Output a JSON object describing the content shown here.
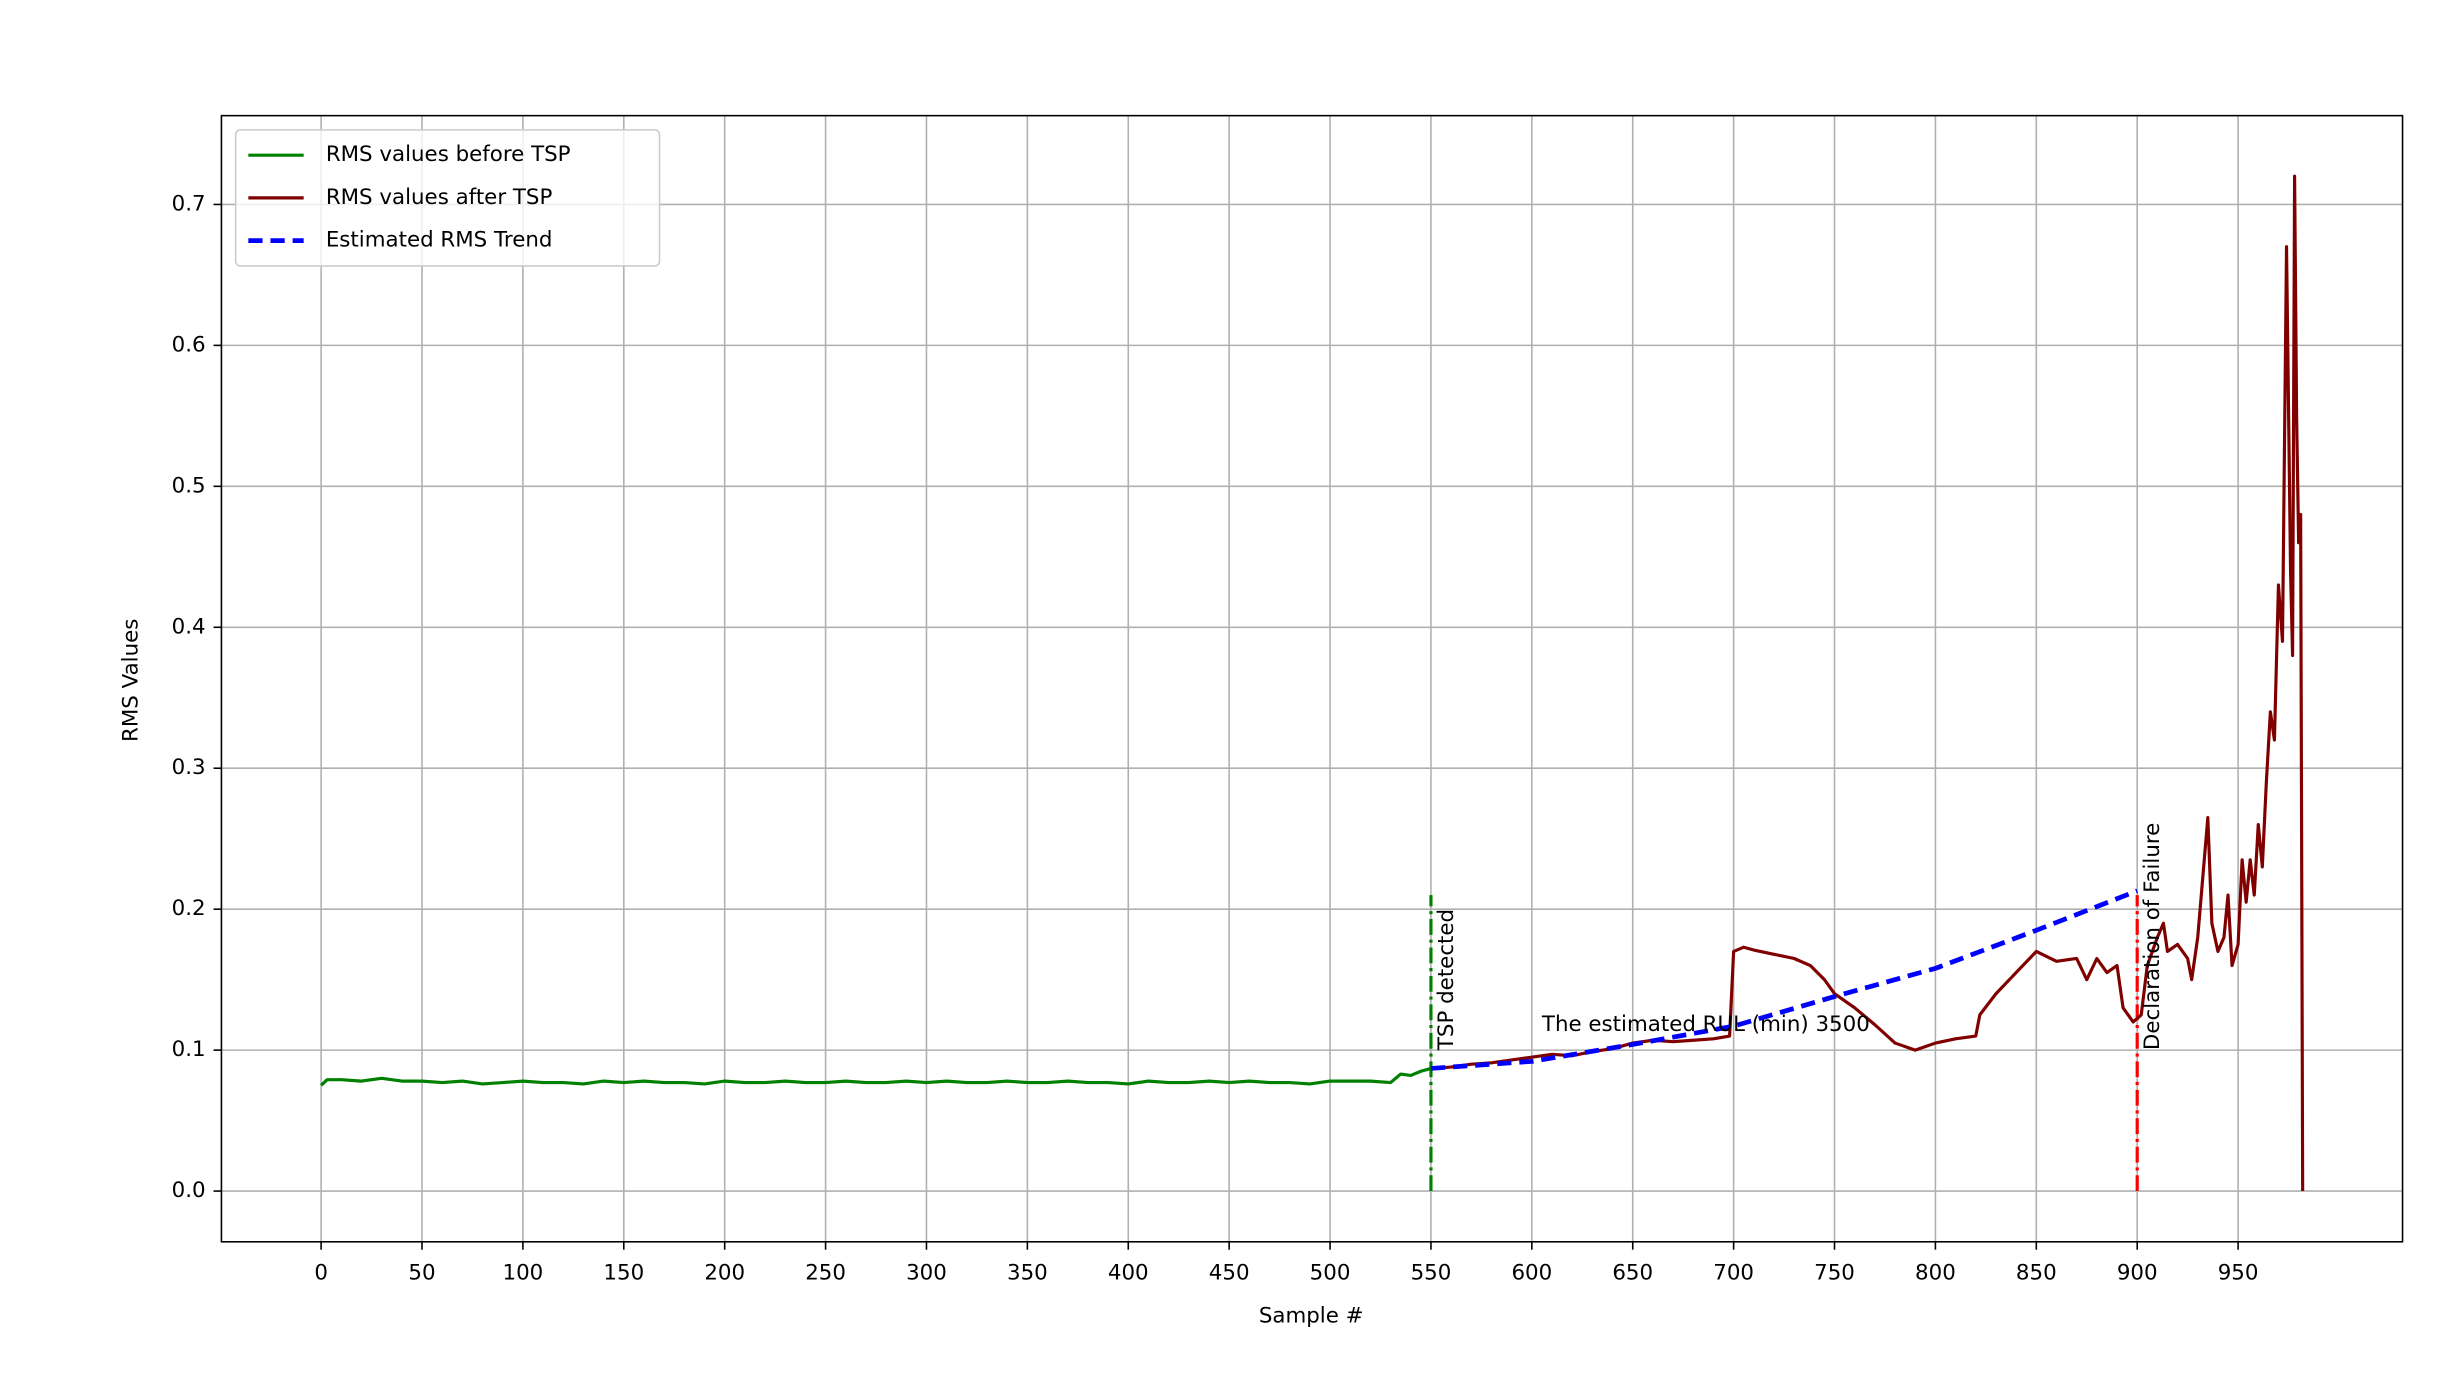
{
  "chart_data": {
    "type": "line",
    "xlabel": "Sample #",
    "ylabel": "RMS Values",
    "xlim": [
      -49.4,
      1031.5
    ],
    "ylim": [
      -0.036,
      0.763
    ],
    "xticks": [
      0,
      50,
      100,
      150,
      200,
      250,
      300,
      350,
      400,
      450,
      500,
      550,
      600,
      650,
      700,
      750,
      800,
      850,
      900,
      950
    ],
    "yticks": [
      {
        "value": 0,
        "label": "0.0"
      },
      0.1,
      0.2,
      0.3,
      0.4,
      0.5,
      0.6,
      0.7
    ],
    "grid": true,
    "legend": "upper left",
    "series": [
      {
        "name": "RMS values before TSP",
        "color": "#008000",
        "linestyle": "solid",
        "x": [
          0,
          3,
          10,
          20,
          30,
          40,
          50,
          60,
          70,
          80,
          90,
          100,
          110,
          120,
          130,
          140,
          150,
          160,
          170,
          180,
          190,
          200,
          210,
          220,
          230,
          240,
          250,
          260,
          270,
          280,
          290,
          300,
          310,
          320,
          330,
          340,
          350,
          360,
          370,
          380,
          390,
          400,
          410,
          420,
          430,
          440,
          450,
          460,
          470,
          480,
          490,
          500,
          510,
          520,
          530,
          535,
          540,
          545,
          550
        ],
        "values": [
          0.075,
          0.079,
          0.079,
          0.078,
          0.08,
          0.078,
          0.078,
          0.077,
          0.078,
          0.076,
          0.077,
          0.078,
          0.077,
          0.077,
          0.076,
          0.078,
          0.077,
          0.078,
          0.077,
          0.077,
          0.076,
          0.078,
          0.077,
          0.077,
          0.078,
          0.077,
          0.077,
          0.078,
          0.077,
          0.077,
          0.078,
          0.077,
          0.078,
          0.077,
          0.077,
          0.078,
          0.077,
          0.077,
          0.078,
          0.077,
          0.077,
          0.076,
          0.078,
          0.077,
          0.077,
          0.078,
          0.077,
          0.078,
          0.077,
          0.077,
          0.076,
          0.078,
          0.078,
          0.078,
          0.077,
          0.083,
          0.082,
          0.085,
          0.087
        ]
      },
      {
        "name": "RMS values after TSP",
        "color": "#800000",
        "linestyle": "solid",
        "x": [
          550,
          560,
          570,
          580,
          590,
          600,
          610,
          620,
          630,
          640,
          650,
          660,
          670,
          680,
          690,
          698,
          700,
          705,
          710,
          720,
          730,
          738,
          745,
          750,
          760,
          770,
          780,
          790,
          800,
          810,
          820,
          822,
          830,
          840,
          850,
          860,
          870,
          875,
          880,
          885,
          890,
          893,
          898,
          902,
          905,
          910,
          913,
          915,
          920,
          925,
          927,
          930,
          935,
          937,
          940,
          943,
          945,
          947,
          950,
          952,
          954,
          956,
          958,
          960,
          962,
          964,
          966,
          968,
          970,
          972,
          974,
          976,
          977,
          978,
          979,
          980,
          981,
          982
        ],
        "values": [
          0.087,
          0.088,
          0.09,
          0.091,
          0.093,
          0.095,
          0.097,
          0.096,
          0.099,
          0.101,
          0.105,
          0.107,
          0.106,
          0.107,
          0.108,
          0.11,
          0.17,
          0.173,
          0.171,
          0.168,
          0.165,
          0.16,
          0.15,
          0.14,
          0.13,
          0.118,
          0.105,
          0.1,
          0.105,
          0.108,
          0.11,
          0.125,
          0.14,
          0.155,
          0.17,
          0.163,
          0.165,
          0.15,
          0.165,
          0.155,
          0.16,
          0.13,
          0.12,
          0.125,
          0.16,
          0.18,
          0.19,
          0.17,
          0.175,
          0.165,
          0.15,
          0.18,
          0.265,
          0.19,
          0.17,
          0.18,
          0.21,
          0.16,
          0.175,
          0.235,
          0.205,
          0.235,
          0.21,
          0.26,
          0.23,
          0.29,
          0.34,
          0.32,
          0.43,
          0.39,
          0.67,
          0.44,
          0.38,
          0.72,
          0.55,
          0.46,
          0.48,
          0.0
        ]
      },
      {
        "name": "Estimated RMS Trend",
        "color": "#0000ff",
        "linestyle": "dashed",
        "x": [
          550,
          600,
          650,
          700,
          750,
          800,
          850,
          900
        ],
        "values": [
          0.087,
          0.092,
          0.104,
          0.117,
          0.138,
          0.158,
          0.185,
          0.213
        ]
      }
    ],
    "markers": [
      {
        "x": 550,
        "ymin": 0,
        "ymax": 0.21,
        "color": "#008000",
        "label": "TSP detected"
      },
      {
        "x": 900,
        "ymin": 0,
        "ymax": 0.21,
        "color": "#ff0000",
        "label": "Declaration of Failure"
      }
    ],
    "annotation": {
      "text": "The estimated RUL (min) 3500",
      "x": 605,
      "y": 0.1
    }
  }
}
